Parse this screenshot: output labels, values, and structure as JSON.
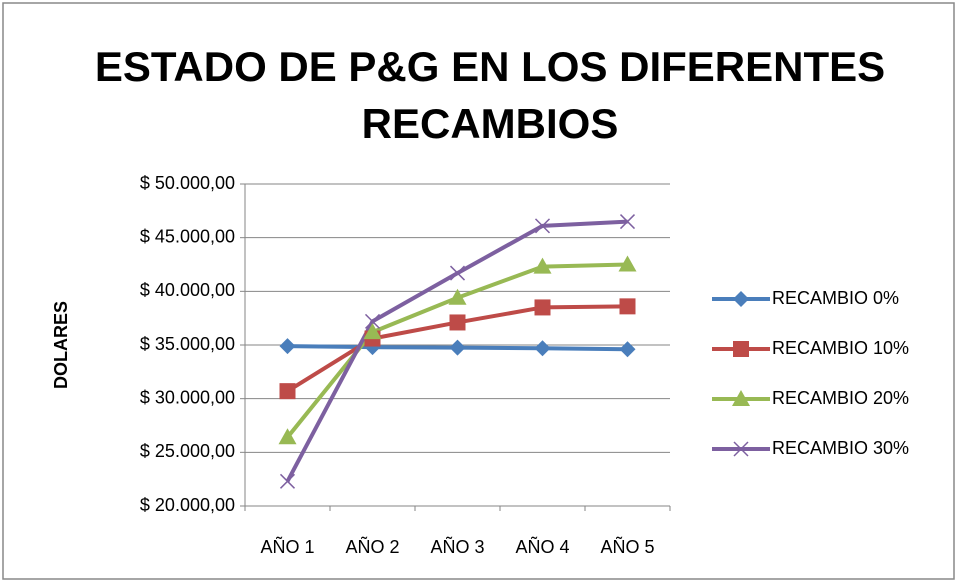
{
  "chart_data": {
    "type": "line",
    "title": "ESTADO DE P&G EN LOS DIFERENTES RECAMBIOS",
    "y_label": "DOLARES",
    "categories": [
      "AÑO 1",
      "AÑO 2",
      "AÑO 3",
      "AÑO 4",
      "AÑO 5"
    ],
    "series": [
      {
        "name": "RECAMBIO 0%",
        "color": "#4a7ebb",
        "marker": "diamond",
        "values": [
          34900,
          34800,
          34750,
          34700,
          34600
        ]
      },
      {
        "name": "RECAMBIO 10%",
        "color": "#be4b48",
        "marker": "square",
        "values": [
          30700,
          35600,
          37100,
          38500,
          38600
        ]
      },
      {
        "name": "RECAMBIO 20%",
        "color": "#98b954",
        "marker": "triangle",
        "values": [
          26400,
          36200,
          39400,
          42300,
          42500
        ]
      },
      {
        "name": "RECAMBIO 30%",
        "color": "#7d60a0",
        "marker": "x",
        "values": [
          22300,
          37200,
          41700,
          46100,
          46500
        ]
      }
    ],
    "ylim": [
      20000,
      50000
    ],
    "yticks": [
      {
        "value": 20000,
        "label": "$ 20.000,00"
      },
      {
        "value": 25000,
        "label": "$ 25.000,00"
      },
      {
        "value": 30000,
        "label": "$ 30.000,00"
      },
      {
        "value": 35000,
        "label": "$ 35.000,00"
      },
      {
        "value": 40000,
        "label": "$ 40.000,00"
      },
      {
        "value": 45000,
        "label": "$ 45.000,00"
      },
      {
        "value": 50000,
        "label": "$ 50.000,00"
      }
    ],
    "grid": true,
    "legend": "right"
  }
}
